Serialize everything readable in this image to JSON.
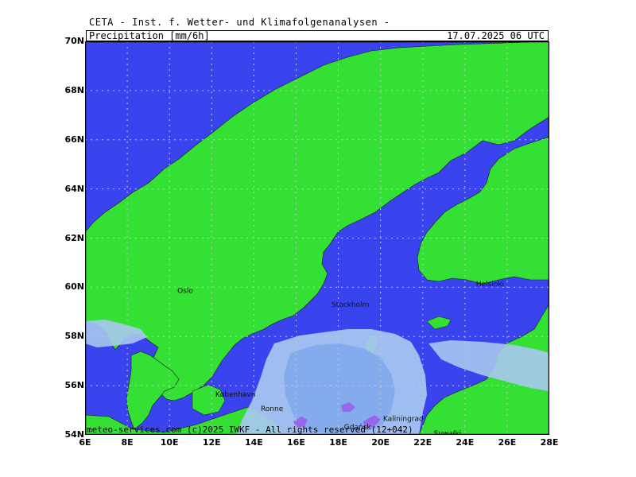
{
  "header": {
    "source": "CETA - Inst. f. Wetter- und Klimafolgenanalysen -"
  },
  "title": {
    "variable": "Precipitation [mm/6h]",
    "valid_time": "17.07.2025 06 UTC"
  },
  "footer": {
    "credit": "meteo-services.com (c)2025 IWKF - All rights reserved (12+042)"
  },
  "axes": {
    "lat": [
      "70N",
      "68N",
      "66N",
      "64N",
      "62N",
      "60N",
      "58N",
      "56N",
      "54N"
    ],
    "lon": [
      "6E",
      "8E",
      "10E",
      "12E",
      "14E",
      "16E",
      "18E",
      "20E",
      "22E",
      "24E",
      "26E",
      "28E"
    ]
  },
  "cities": [
    {
      "name": "Oslo",
      "lon": 10.75,
      "lat": 59.9
    },
    {
      "name": "Stockholm",
      "lon": 18.05,
      "lat": 59.33
    },
    {
      "name": "Helsinki",
      "lon": 24.9,
      "lat": 60.17
    },
    {
      "name": "København",
      "lon": 12.55,
      "lat": 55.68
    },
    {
      "name": "Ronne",
      "lon": 14.7,
      "lat": 55.1
    },
    {
      "name": "Kaliningrad",
      "lon": 20.5,
      "lat": 54.7
    },
    {
      "name": "Gdańsk",
      "lon": 18.65,
      "lat": 54.35
    },
    {
      "name": "Suwałki",
      "lon": 22.9,
      "lat": 54.1
    }
  ],
  "colors": {
    "sea": "#3a44ee",
    "land": "#33e033",
    "precip_light": "#a8c8f0",
    "precip_mid": "#7fa8ec",
    "precip_heavy": "#9966ee",
    "grid": "#c8c8c8"
  },
  "map": {
    "lon_min": 6,
    "lon_max": 28,
    "lat_min": 54,
    "lat_max": 70,
    "grid": "dotted"
  }
}
